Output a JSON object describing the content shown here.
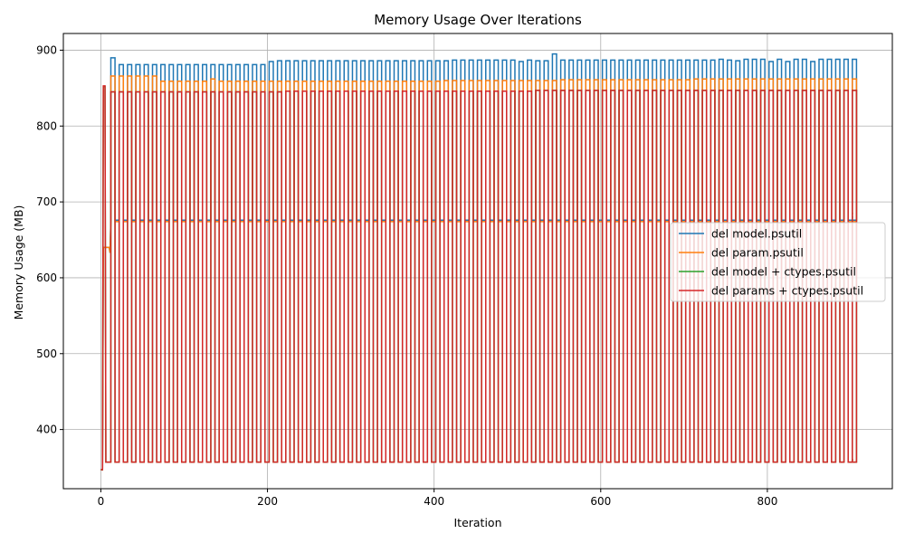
{
  "chart_data": {
    "type": "line",
    "title": "Memory Usage Over Iterations",
    "xlabel": "Iteration",
    "ylabel": "Memory Usage (MB)",
    "xlim": [
      -45,
      950
    ],
    "ylim": [
      322,
      922
    ],
    "xticks": [
      0,
      200,
      400,
      600,
      800
    ],
    "yticks": [
      400,
      500,
      600,
      700,
      800,
      900
    ],
    "grid": true,
    "legend_position": "center-right",
    "pattern": {
      "description": "repeating spike cycles every ~10 iterations",
      "period": 10,
      "high_duration": 5,
      "x_start": 12,
      "x_end": 902
    },
    "series": [
      {
        "name": "del model.psutil",
        "color": "#1f77b4",
        "start_points": [
          [
            0,
            347
          ],
          [
            2,
            347
          ],
          [
            3,
            640
          ],
          [
            10,
            640
          ],
          [
            11,
            633
          ]
        ],
        "high_values": [
          890,
          881,
          881,
          881,
          881,
          881,
          881,
          881,
          881,
          881,
          881,
          881,
          881,
          881,
          881,
          881,
          881,
          881,
          881,
          885,
          886,
          886,
          886,
          886,
          886,
          886,
          886,
          886,
          886,
          886,
          886,
          886,
          886,
          886,
          886,
          886,
          886,
          886,
          886,
          886,
          886,
          887,
          887,
          887,
          887,
          887,
          887,
          887,
          887,
          885,
          887,
          886,
          886,
          895,
          887,
          887,
          887,
          887,
          887,
          887,
          887,
          887,
          887,
          887,
          887,
          887,
          887,
          887,
          887,
          887,
          887,
          887,
          887,
          888,
          887,
          886,
          888,
          888,
          888,
          885,
          888,
          885,
          888,
          888,
          885,
          888,
          888,
          888,
          888,
          888
        ],
        "low_value": 676,
        "final_value": 680
      },
      {
        "name": "del param.psutil",
        "color": "#ff7f0e",
        "start_points": [
          [
            0,
            347
          ],
          [
            2,
            347
          ],
          [
            3,
            640
          ],
          [
            10,
            640
          ],
          [
            11,
            633
          ]
        ],
        "high_values": [
          866,
          866,
          866,
          866,
          866,
          866,
          859,
          859,
          859,
          859,
          859,
          859,
          862,
          859,
          859,
          859,
          859,
          859,
          859,
          859,
          859,
          859,
          859,
          859,
          859,
          859,
          859,
          859,
          859,
          859,
          859,
          859,
          859,
          859,
          859,
          859,
          859,
          859,
          859,
          859,
          860,
          860,
          860,
          860,
          860,
          860,
          860,
          860,
          860,
          860,
          860,
          860,
          860,
          860,
          861,
          861,
          861,
          861,
          861,
          861,
          861,
          861,
          861,
          861,
          861,
          861,
          861,
          861,
          861,
          861,
          862,
          862,
          862,
          862,
          862,
          862,
          862,
          862,
          862,
          862,
          862,
          862,
          862,
          862,
          862,
          862,
          862,
          862,
          862,
          862
        ],
        "low_value": 674,
        "final_value": 685
      },
      {
        "name": "del model + ctypes.psutil",
        "color": "#2ca02c",
        "start_points": [
          [
            0,
            347
          ],
          [
            2,
            347
          ],
          [
            3,
            852
          ],
          [
            5,
            852
          ],
          [
            6,
            357
          ]
        ],
        "high_values": [
          845,
          845,
          845,
          845,
          845,
          845,
          845,
          845,
          845,
          845,
          845,
          845,
          845,
          845,
          845,
          845,
          845,
          845,
          845,
          845,
          845,
          846,
          846,
          846,
          846,
          846,
          846,
          846,
          846,
          846,
          846,
          846,
          846,
          846,
          846,
          846,
          846,
          846,
          846,
          846,
          846,
          846,
          846,
          846,
          846,
          846,
          846,
          846,
          846,
          846,
          846,
          847,
          847,
          847,
          847,
          847,
          847,
          847,
          847,
          847,
          847,
          847,
          847,
          847,
          847,
          847,
          847,
          847,
          847,
          847,
          847,
          847,
          847,
          847,
          847,
          847,
          847,
          847,
          847,
          847,
          847,
          847,
          847,
          847,
          847,
          847,
          847,
          847,
          847,
          847
        ],
        "low_value": 357,
        "final_value": 360
      },
      {
        "name": "del params + ctypes.psutil",
        "color": "#d62728",
        "start_points": [
          [
            0,
            347
          ],
          [
            2,
            347
          ],
          [
            3,
            853
          ],
          [
            5,
            853
          ],
          [
            6,
            357
          ]
        ],
        "high_values": [
          845,
          845,
          845,
          845,
          845,
          845,
          845,
          845,
          845,
          845,
          845,
          845,
          845,
          845,
          845,
          845,
          845,
          845,
          845,
          845,
          845,
          846,
          846,
          846,
          846,
          846,
          846,
          846,
          846,
          846,
          846,
          846,
          846,
          846,
          846,
          846,
          846,
          846,
          846,
          846,
          846,
          846,
          846,
          846,
          846,
          846,
          846,
          846,
          846,
          846,
          846,
          847,
          847,
          847,
          847,
          847,
          847,
          847,
          847,
          847,
          847,
          847,
          847,
          847,
          847,
          847,
          847,
          847,
          847,
          847,
          847,
          847,
          847,
          847,
          847,
          847,
          847,
          847,
          847,
          847,
          847,
          847,
          847,
          847,
          847,
          847,
          847,
          847,
          847,
          847
        ],
        "low_value": 357,
        "final_value": 360
      }
    ]
  }
}
